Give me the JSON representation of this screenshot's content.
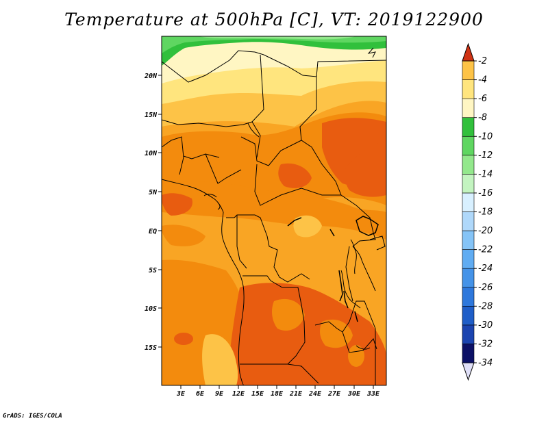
{
  "title": "Temperature at 500hPa [C], VT: 2019122900",
  "credit": "GrADS: IGES/COLA",
  "map": {
    "lat_ticks": [
      "20N",
      "15N",
      "10N",
      "5N",
      "EQ",
      "5S",
      "10S",
      "15S"
    ],
    "lon_ticks": [
      "3E",
      "6E",
      "9E",
      "12E",
      "15E",
      "18E",
      "21E",
      "24E",
      "27E",
      "30E",
      "33E"
    ]
  },
  "colorbar": {
    "labels": [
      "-2",
      "-4",
      "-6",
      "-8",
      "-10",
      "-12",
      "-14",
      "-16",
      "-18",
      "-20",
      "-22",
      "-24",
      "-26",
      "-28",
      "-30",
      "-32",
      "-34"
    ],
    "colors": [
      "#e0e0f8",
      "#0c1166",
      "#1b44b0",
      "#1f5ec8",
      "#2e78dc",
      "#4593e8",
      "#60acf2",
      "#85c4f7",
      "#afd8fa",
      "#d8f0ff",
      "#c3f4c0",
      "#93e88c",
      "#5fd661",
      "#31c03c",
      "#fff6c3",
      "#ffe57e",
      "#fdc347",
      "#f9a524",
      "#f38b0d",
      "#e85c10",
      "#cf3214"
    ]
  }
}
